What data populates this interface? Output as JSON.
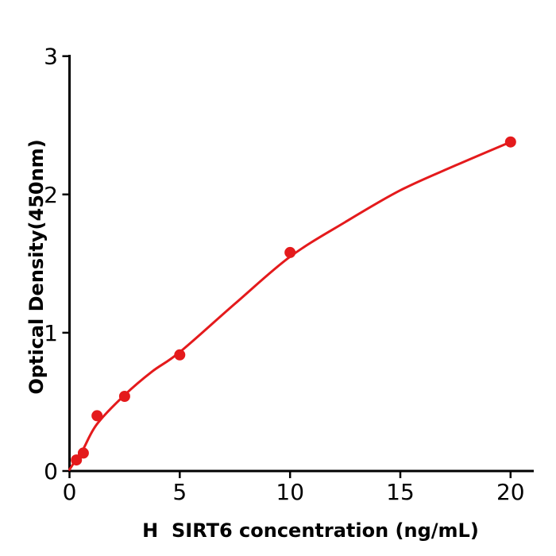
{
  "figure": {
    "background": "#ffffff"
  },
  "chart_data": {
    "type": "scatter",
    "title": "",
    "xlabel": "H  SIRT6 concentration (ng/mL)",
    "ylabel": "Optical Density(450nm)",
    "x_ticks": [
      0,
      5,
      10,
      15,
      20
    ],
    "y_ticks": [
      0,
      1,
      2,
      3
    ],
    "xlim": [
      0,
      21.05
    ],
    "ylim": [
      0,
      3.01
    ],
    "grid": false,
    "legend": null,
    "axis_color": "#000000",
    "series": [
      {
        "name": "standard-points",
        "type": "scatter",
        "color": "#e41a1c",
        "marker": "circle",
        "x": [
          0.313,
          0.625,
          1.25,
          2.5,
          5,
          10,
          20
        ],
        "y": [
          0.08,
          0.13,
          0.4,
          0.54,
          0.84,
          1.58,
          2.38
        ]
      },
      {
        "name": "fit-curve",
        "type": "line",
        "color": "#e41a1c",
        "x": [
          0,
          0.16,
          0.313,
          0.625,
          1.25,
          2.5,
          3.75,
          5,
          7.5,
          10,
          12.5,
          15,
          17.5,
          20
        ],
        "y": [
          0.01,
          0.05,
          0.09,
          0.16,
          0.34,
          0.55,
          0.72,
          0.86,
          1.21,
          1.55,
          1.8,
          2.03,
          2.21,
          2.38
        ]
      }
    ]
  }
}
